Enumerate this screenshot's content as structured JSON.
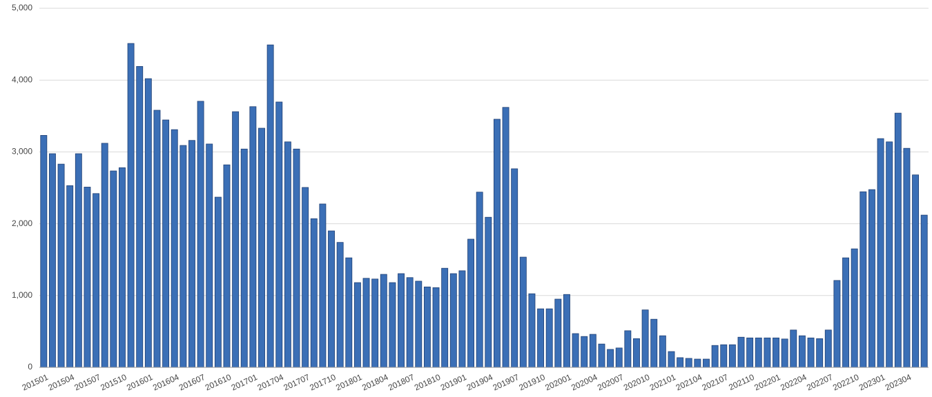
{
  "chart_data": {
    "type": "bar",
    "categories": [
      "201501",
      null,
      null,
      "201504",
      null,
      null,
      "201507",
      null,
      null,
      "201510",
      null,
      null,
      "201601",
      null,
      null,
      "201604",
      null,
      null,
      "201607",
      null,
      null,
      "201610",
      null,
      null,
      "201701",
      null,
      null,
      "201704",
      null,
      null,
      "201707",
      null,
      null,
      "201710",
      null,
      null,
      "201801",
      null,
      null,
      "201804",
      null,
      null,
      "201807",
      null,
      null,
      "201810",
      null,
      null,
      "201901",
      null,
      null,
      "201904",
      null,
      null,
      "201907",
      null,
      null,
      "201910",
      null,
      null,
      "202001",
      null,
      null,
      "202004",
      null,
      null,
      "202007",
      null,
      null,
      "202010",
      null,
      null,
      "202101",
      null,
      null,
      "202104",
      null,
      null,
      "202107",
      null,
      null,
      "202110",
      null,
      null,
      "202201",
      null,
      null,
      "202204",
      null,
      null,
      "202207",
      null,
      null,
      "202210",
      null,
      null,
      "202301",
      null,
      null,
      "202304",
      null,
      null
    ],
    "values": [
      3230,
      2975,
      2830,
      2530,
      2975,
      2510,
      2420,
      3120,
      2735,
      2780,
      4510,
      4190,
      4020,
      3580,
      3445,
      3310,
      3090,
      3160,
      3705,
      3110,
      2370,
      2820,
      3560,
      3040,
      3630,
      3330,
      4490,
      3695,
      3140,
      3040,
      2505,
      2070,
      2275,
      1900,
      1740,
      1525,
      1180,
      1240,
      1230,
      1295,
      1180,
      1305,
      1250,
      1200,
      1120,
      1110,
      1380,
      1305,
      1345,
      1785,
      2440,
      2090,
      3455,
      3620,
      2765,
      1535,
      1025,
      815,
      815,
      950,
      1015,
      470,
      430,
      460,
      325,
      250,
      270,
      510,
      400,
      800,
      670,
      440,
      220,
      135,
      125,
      115,
      115,
      305,
      315,
      315,
      420,
      410,
      410,
      410,
      410,
      395,
      520,
      440,
      410,
      400,
      520,
      1210,
      1525,
      1650,
      2445,
      2475,
      3185,
      3140,
      3540,
      3050,
      2680,
      2120
    ],
    "color": "#3b6fb6",
    "ylim": [
      0,
      5000
    ],
    "yticks": [
      0,
      {
        "value": 1000,
        "label": "1,000"
      },
      {
        "value": 2000,
        "label": "2,000"
      },
      {
        "value": 3000,
        "label": "3,000"
      },
      {
        "value": 4000,
        "label": "4,000"
      },
      {
        "value": 5000,
        "label": "5,000"
      }
    ],
    "grid": true
  }
}
